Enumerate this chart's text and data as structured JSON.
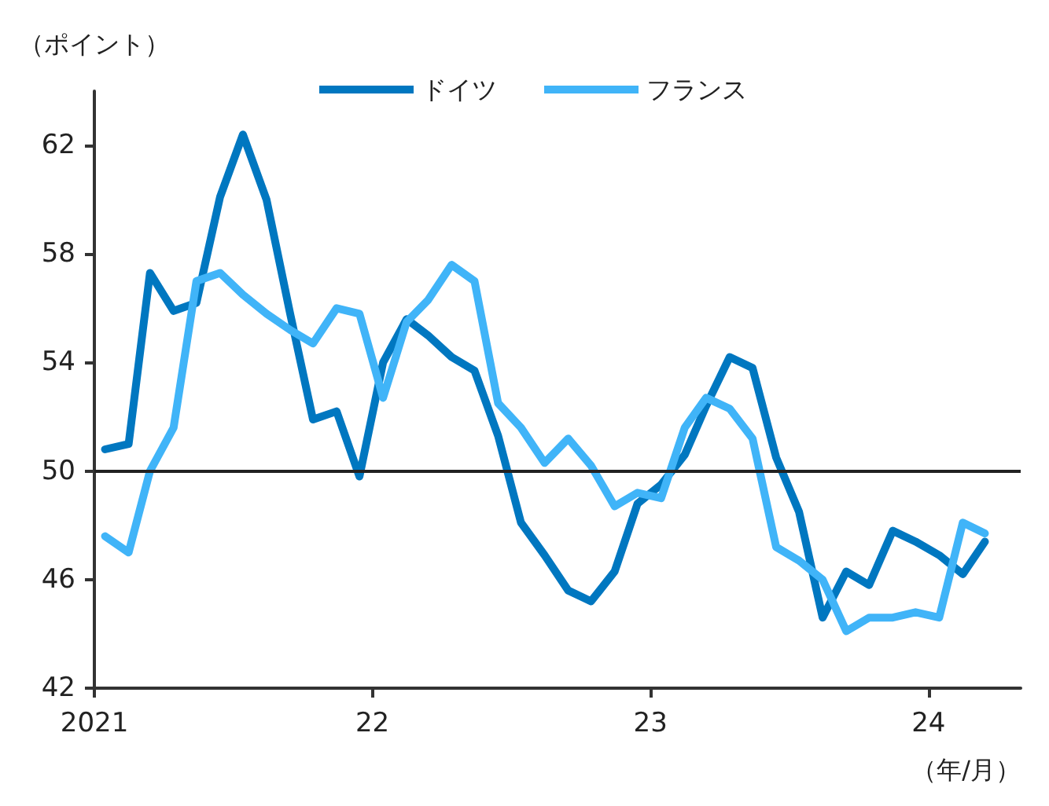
{
  "chart_data": {
    "type": "line",
    "ylabel": "（ポイント）",
    "xlabel": "（年/月）",
    "x": [
      "2021-01-15",
      "2021-02-15",
      "2021-03-15",
      "2021-04-15",
      "2021-05-15",
      "2021-06-15",
      "2021-07-15",
      "2021-08-15",
      "2021-09-15",
      "2021-10-15",
      "2021-11-15",
      "2021-12-15",
      "2022-01-15",
      "2022-02-15",
      "2022-03-15",
      "2022-04-15",
      "2022-05-15",
      "2022-06-15",
      "2022-07-15",
      "2022-08-15",
      "2022-09-15",
      "2022-10-15",
      "2022-11-15",
      "2022-12-15",
      "2023-01-15",
      "2023-02-15",
      "2023-03-15",
      "2023-04-15",
      "2023-05-15",
      "2023-06-15",
      "2023-07-15",
      "2023-08-15",
      "2023-09-15",
      "2023-10-15",
      "2023-11-15",
      "2023-12-15",
      "2024-01-15",
      "2024-02-15",
      "2024-03-15"
    ],
    "series": [
      {
        "name": "ドイツ",
        "color": "#0077c0",
        "values": [
          50.8,
          51.0,
          57.3,
          55.9,
          56.2,
          60.1,
          62.4,
          60.0,
          55.8,
          51.9,
          52.2,
          49.8,
          54.0,
          55.6,
          55.0,
          54.2,
          53.7,
          51.3,
          48.1,
          46.9,
          45.6,
          45.2,
          46.3,
          48.8,
          49.5,
          50.6,
          52.4,
          54.2,
          53.8,
          50.5,
          48.5,
          44.6,
          46.3,
          45.8,
          47.8,
          47.4,
          46.9,
          46.2,
          47.4
        ]
      },
      {
        "name": "フランス",
        "color": "#40b4f8",
        "values": [
          47.6,
          47.0,
          50.0,
          51.6,
          57.0,
          57.3,
          56.5,
          55.8,
          55.2,
          54.7,
          56.0,
          55.8,
          52.7,
          55.5,
          56.3,
          57.6,
          57.0,
          52.5,
          51.6,
          50.3,
          51.2,
          50.2,
          48.7,
          49.2,
          49.0,
          51.6,
          52.7,
          52.3,
          51.2,
          47.2,
          46.7,
          46.0,
          44.1,
          44.6,
          44.6,
          44.8,
          44.6,
          48.1,
          47.7
        ]
      }
    ],
    "xlim": [
      "2021-01-01",
      "2024-05-01"
    ],
    "xticks": [
      {
        "value": "2021-01-01",
        "label": "2021"
      },
      {
        "value": "2022-01-01",
        "label": "22"
      },
      {
        "value": "2023-01-01",
        "label": "23"
      },
      {
        "value": "2024-01-01",
        "label": "24"
      }
    ],
    "ylim": [
      42,
      64
    ],
    "yticks": [
      42,
      46,
      50,
      54,
      58,
      62
    ],
    "ref_lines": [
      {
        "axis": "y",
        "value": 50,
        "color": "#222222"
      }
    ],
    "legend": "top",
    "grid": false,
    "marker": "none",
    "line_style": "solid"
  }
}
